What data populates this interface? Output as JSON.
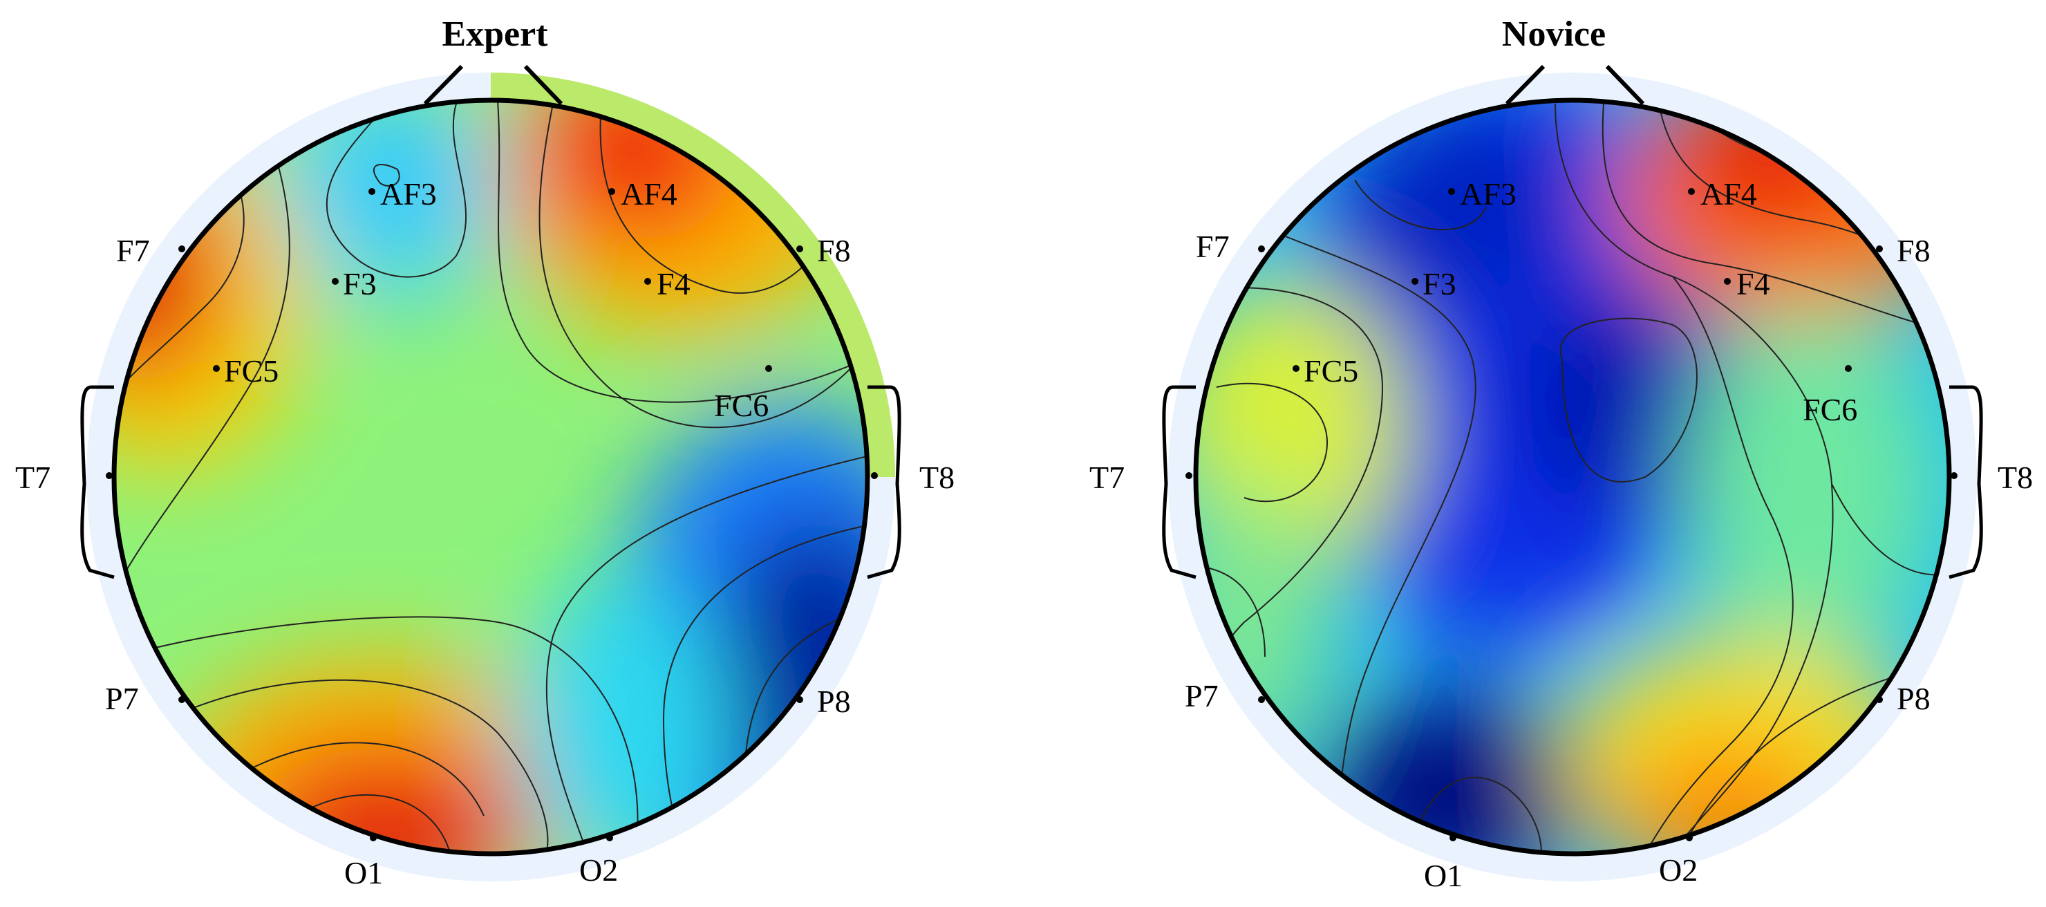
{
  "panels": [
    {
      "title": "Expert",
      "electrodes": [
        "AF3",
        "AF4",
        "F7",
        "F8",
        "F3",
        "F4",
        "FC5",
        "FC6",
        "T7",
        "T8",
        "P7",
        "P8",
        "O1",
        "O2"
      ],
      "hotspots": [
        {
          "label": "AF4",
          "level": "high",
          "color": "#e8190a"
        },
        {
          "label": "F7",
          "level": "high",
          "color": "#e01208"
        },
        {
          "label": "O1",
          "level": "high",
          "color": "#e61408"
        },
        {
          "label": "F4",
          "level": "mid-high",
          "color": "#ff9a00"
        },
        {
          "label": "AF3",
          "level": "low-mid",
          "color": "#1ec8ff"
        },
        {
          "label": "P8",
          "level": "low",
          "color": "#001a9c"
        },
        {
          "label": "T8",
          "level": "low",
          "color": "#0a34e8"
        }
      ]
    },
    {
      "title": "Novice",
      "electrodes": [
        "AF3",
        "AF4",
        "F7",
        "F8",
        "F3",
        "F4",
        "FC5",
        "FC6",
        "T7",
        "T8",
        "P7",
        "P8",
        "O1",
        "O2"
      ],
      "hotspots": [
        {
          "label": "AF3",
          "level": "low",
          "color": "#0020c0"
        },
        {
          "label": "F4",
          "level": "low",
          "color": "#001aa8"
        },
        {
          "label": "O1",
          "level": "low",
          "color": "#000e80"
        },
        {
          "label": "FC5",
          "level": "mid-high",
          "color": "#e8f51e"
        },
        {
          "label": "AF4",
          "level": "high",
          "color": "#e8180a"
        },
        {
          "label": "F8",
          "level": "high",
          "color": "#ff5a00"
        },
        {
          "label": "O2",
          "level": "mid-high",
          "color": "#ff8c00"
        }
      ]
    }
  ],
  "colors": {
    "background_field": "#8ef27a",
    "head_halo": "#eaf3fd",
    "outline": "#000000"
  },
  "icons": [
    "head-outline-icon",
    "nose-icon",
    "ear-icon",
    "electrode-dot-icon"
  ]
}
